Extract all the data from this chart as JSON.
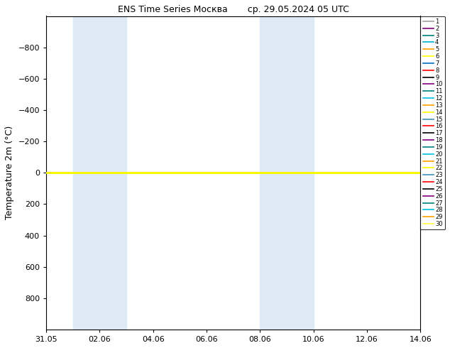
{
  "title": "ENS Time Series Москва       ср. 29.05.2024 05 UTC",
  "ylabel": "Temperature 2m (°C)",
  "ylim": [
    -1000,
    1000
  ],
  "yticks": [
    -800,
    -600,
    -400,
    -200,
    0,
    200,
    400,
    600,
    800
  ],
  "xtick_labels": [
    "31.05",
    "02.06",
    "04.06",
    "06.06",
    "08.06",
    "10.06",
    "12.06",
    "14.06"
  ],
  "xtick_positions": [
    0,
    2,
    4,
    6,
    8,
    10,
    12,
    14
  ],
  "shade_regions": [
    {
      "xmin": 1.0,
      "xmax": 3.0,
      "color": "#ddeaf5"
    },
    {
      "xmin": 8.0,
      "xmax": 10.0,
      "color": "#ddeaf5"
    }
  ],
  "n_members": 30,
  "member_colors": [
    "#a0a0a0",
    "#800080",
    "#008080",
    "#00b0d0",
    "#ffa000",
    "#ffff00",
    "#0070c0",
    "#ff0000",
    "#000000",
    "#800080",
    "#008080",
    "#00c0e0",
    "#ffa000",
    "#ffff00",
    "#4090c0",
    "#ff0000",
    "#000000",
    "#800080",
    "#008080",
    "#00c0e0",
    "#ffa000",
    "#ffff00",
    "#4090c0",
    "#ff0000",
    "#000000",
    "#800080",
    "#008080",
    "#00c0e0",
    "#ffa000",
    "#ffff40"
  ],
  "highlight_member_idx": 21,
  "figsize": [
    6.34,
    4.9
  ],
  "dpi": 100
}
